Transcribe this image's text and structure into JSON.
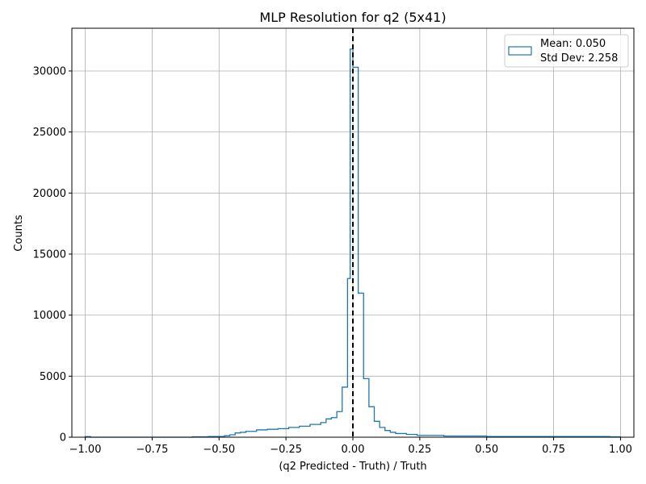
{
  "chart_data": {
    "type": "histogram",
    "title": "MLP Resolution for q2 (5x41)",
    "xlabel": "(q2 Predicted - Truth) / Truth",
    "ylabel": "Counts",
    "xlim": [
      -1.05,
      1.05
    ],
    "ylim": [
      0,
      33500
    ],
    "xticks": [
      -1.0,
      -0.75,
      -0.5,
      -0.25,
      0.0,
      0.25,
      0.5,
      0.75,
      1.0
    ],
    "xtick_labels": [
      "−1.00",
      "−0.75",
      "−0.50",
      "−0.25",
      "0.00",
      "0.25",
      "0.50",
      "0.75",
      "1.00"
    ],
    "yticks": [
      0,
      5000,
      10000,
      15000,
      20000,
      25000,
      30000
    ],
    "ytick_labels": [
      "0",
      "5000",
      "10000",
      "15000",
      "20000",
      "25000",
      "30000"
    ],
    "grid": true,
    "series_color": "#1f77b4",
    "reference_line": {
      "x": 0.0,
      "color": "#000000",
      "style": "dashed"
    },
    "legend": {
      "placement": "top-right",
      "lines": [
        "Mean: 0.050",
        "Std Dev: 2.258"
      ]
    },
    "bins": [
      {
        "x0": -1.0,
        "x1": -0.98,
        "count": 50
      },
      {
        "x0": -0.98,
        "x1": -0.6,
        "count": 0
      },
      {
        "x0": -0.6,
        "x1": -0.54,
        "count": 30
      },
      {
        "x0": -0.54,
        "x1": -0.48,
        "count": 60
      },
      {
        "x0": -0.48,
        "x1": -0.46,
        "count": 120
      },
      {
        "x0": -0.46,
        "x1": -0.44,
        "count": 200
      },
      {
        "x0": -0.44,
        "x1": -0.42,
        "count": 350
      },
      {
        "x0": -0.42,
        "x1": -0.4,
        "count": 400
      },
      {
        "x0": -0.4,
        "x1": -0.36,
        "count": 480
      },
      {
        "x0": -0.36,
        "x1": -0.32,
        "count": 600
      },
      {
        "x0": -0.32,
        "x1": -0.28,
        "count": 650
      },
      {
        "x0": -0.28,
        "x1": -0.24,
        "count": 700
      },
      {
        "x0": -0.24,
        "x1": -0.2,
        "count": 800
      },
      {
        "x0": -0.2,
        "x1": -0.16,
        "count": 900
      },
      {
        "x0": -0.16,
        "x1": -0.12,
        "count": 1050
      },
      {
        "x0": -0.12,
        "x1": -0.1,
        "count": 1200
      },
      {
        "x0": -0.1,
        "x1": -0.08,
        "count": 1500
      },
      {
        "x0": -0.08,
        "x1": -0.06,
        "count": 1600
      },
      {
        "x0": -0.06,
        "x1": -0.04,
        "count": 2100
      },
      {
        "x0": -0.04,
        "x1": -0.02,
        "count": 4100
      },
      {
        "x0": -0.02,
        "x1": -0.01,
        "count": 13000
      },
      {
        "x0": -0.01,
        "x1": 0.0,
        "count": 31800
      },
      {
        "x0": 0.0,
        "x1": 0.02,
        "count": 30300
      },
      {
        "x0": 0.02,
        "x1": 0.04,
        "count": 11800
      },
      {
        "x0": 0.04,
        "x1": 0.06,
        "count": 4800
      },
      {
        "x0": 0.06,
        "x1": 0.08,
        "count": 2500
      },
      {
        "x0": 0.08,
        "x1": 0.1,
        "count": 1300
      },
      {
        "x0": 0.1,
        "x1": 0.12,
        "count": 800
      },
      {
        "x0": 0.12,
        "x1": 0.14,
        "count": 550
      },
      {
        "x0": 0.14,
        "x1": 0.16,
        "count": 400
      },
      {
        "x0": 0.16,
        "x1": 0.2,
        "count": 300
      },
      {
        "x0": 0.2,
        "x1": 0.24,
        "count": 230
      },
      {
        "x0": 0.24,
        "x1": 0.34,
        "count": 150
      },
      {
        "x0": 0.34,
        "x1": 0.5,
        "count": 100
      },
      {
        "x0": 0.5,
        "x1": 0.96,
        "count": 60
      },
      {
        "x0": 0.96,
        "x1": 1.0,
        "count": 30
      }
    ]
  }
}
